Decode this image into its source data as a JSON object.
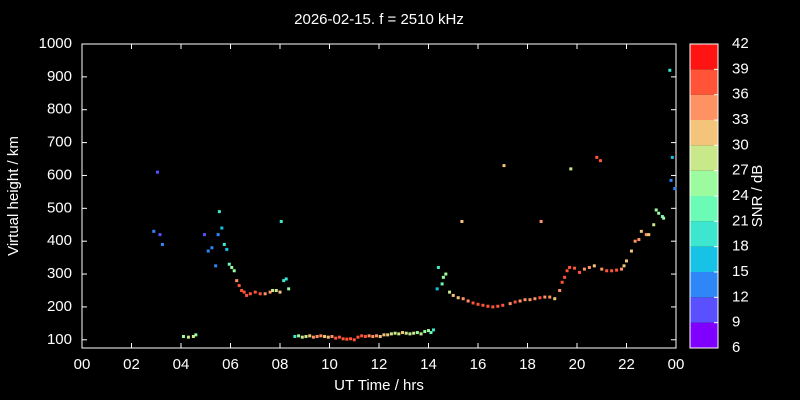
{
  "chart_data": {
    "type": "scatter",
    "title": "2026-02-15. f = 2510 kHz",
    "xlabel": "UT Time / hrs",
    "ylabel": "Virtual height / km",
    "colorbar_label": "SNR / dB",
    "xlim": [
      0,
      24
    ],
    "ylim": [
      75,
      1000
    ],
    "xticks": [
      {
        "value": 0,
        "label": "00"
      },
      {
        "value": 2,
        "label": "02"
      },
      {
        "value": 4,
        "label": "04"
      },
      {
        "value": 6,
        "label": "06"
      },
      {
        "value": 8,
        "label": "08"
      },
      10,
      12,
      14,
      16,
      18,
      20,
      22,
      {
        "value": 24,
        "label": "00"
      }
    ],
    "yticks": [
      100,
      200,
      300,
      400,
      500,
      600,
      700,
      800,
      900,
      1000
    ],
    "clim": [
      6,
      42
    ],
    "cticks": [
      6,
      9,
      12,
      15,
      18,
      21,
      24,
      27,
      30,
      33,
      36,
      39,
      42
    ],
    "colormap": [
      "#8000ff",
      "#5a50ff",
      "#2e86f7",
      "#18c2e6",
      "#3de6cf",
      "#6bfbb6",
      "#9cfb9e",
      "#c9e88a",
      "#f4c47a",
      "#ff9262",
      "#ff5437",
      "#ff1414"
    ],
    "x": [
      2.9,
      3.05,
      3.15,
      3.25,
      4.95,
      5.1,
      5.25,
      5.4,
      5.5,
      5.55,
      5.65,
      5.75,
      5.85,
      5.95,
      6.05,
      6.15,
      6.25,
      6.35,
      6.45,
      6.55,
      6.65,
      6.8,
      7.0,
      7.2,
      7.4,
      7.6,
      7.7,
      7.85,
      8.0,
      8.05,
      8.15,
      8.25,
      8.35,
      4.1,
      4.3,
      4.5,
      4.6,
      8.6,
      8.75,
      8.9,
      9.05,
      9.2,
      9.35,
      9.5,
      9.65,
      9.8,
      9.95,
      10.1,
      10.25,
      10.4,
      10.55,
      10.7,
      10.85,
      11.0,
      11.15,
      11.3,
      11.45,
      11.6,
      11.75,
      11.9,
      12.05,
      12.2,
      12.35,
      12.5,
      12.65,
      12.8,
      12.95,
      13.1,
      13.25,
      13.4,
      13.55,
      13.7,
      13.85,
      14.0,
      14.1,
      14.2,
      14.35,
      14.4,
      14.55,
      14.6,
      14.7,
      14.85,
      15.0,
      15.2,
      15.35,
      15.4,
      15.6,
      15.8,
      16.0,
      16.2,
      16.4,
      16.6,
      16.8,
      17.0,
      17.05,
      17.3,
      17.5,
      17.7,
      17.9,
      18.1,
      18.3,
      18.5,
      18.55,
      18.7,
      18.9,
      19.1,
      19.3,
      19.4,
      19.5,
      19.6,
      19.7,
      19.75,
      19.9,
      20.1,
      20.3,
      20.5,
      20.7,
      20.8,
      20.95,
      21.0,
      21.2,
      21.4,
      21.6,
      21.8,
      21.9,
      22.0,
      22.2,
      22.35,
      22.5,
      22.6,
      22.8,
      22.9,
      23.1,
      23.2,
      23.3,
      23.45,
      23.5,
      23.75,
      23.8,
      23.85,
      23.95
    ],
    "y": [
      430,
      610,
      420,
      390,
      420,
      370,
      380,
      325,
      420,
      490,
      440,
      390,
      375,
      330,
      320,
      310,
      280,
      265,
      250,
      245,
      235,
      240,
      245,
      240,
      240,
      245,
      250,
      250,
      245,
      460,
      280,
      285,
      255,
      110,
      108,
      110,
      115,
      110,
      112,
      108,
      110,
      112,
      108,
      110,
      112,
      110,
      108,
      110,
      105,
      108,
      103,
      102,
      103,
      100,
      108,
      112,
      110,
      112,
      110,
      112,
      110,
      115,
      115,
      118,
      120,
      118,
      122,
      120,
      118,
      120,
      122,
      118,
      125,
      128,
      122,
      130,
      255,
      320,
      270,
      290,
      300,
      245,
      235,
      228,
      460,
      225,
      218,
      212,
      208,
      205,
      202,
      200,
      202,
      205,
      630,
      210,
      215,
      218,
      222,
      222,
      225,
      228,
      460,
      230,
      230,
      225,
      250,
      275,
      290,
      310,
      320,
      620,
      318,
      305,
      315,
      320,
      325,
      655,
      645,
      315,
      310,
      310,
      312,
      315,
      325,
      340,
      370,
      400,
      405,
      430,
      420,
      420,
      450,
      495,
      485,
      475,
      470,
      920,
      585,
      655,
      560
    ],
    "snr": [
      12,
      10,
      11,
      13,
      11,
      14,
      12,
      13,
      13,
      19,
      17,
      19,
      17,
      22,
      24,
      26,
      35,
      36,
      37,
      37,
      36,
      36,
      37,
      36,
      35,
      34,
      28,
      27,
      30,
      19,
      20,
      18,
      26,
      26,
      27,
      28,
      25,
      20,
      24,
      27,
      29,
      31,
      33,
      35,
      34,
      32,
      30,
      33,
      36,
      37,
      38,
      38,
      37,
      36,
      36,
      37,
      36,
      35,
      34,
      33,
      32,
      31,
      30,
      29,
      28,
      27,
      30,
      29,
      27,
      28,
      26,
      27,
      25,
      24,
      22,
      18,
      15,
      20,
      23,
      25,
      24,
      28,
      30,
      31,
      32,
      33,
      35,
      36,
      36,
      37,
      37,
      38,
      37,
      36,
      31,
      35,
      36,
      35,
      34,
      34,
      35,
      36,
      33,
      35,
      33,
      32,
      35,
      37,
      37,
      37,
      38,
      29,
      37,
      36,
      35,
      33,
      31,
      37,
      38,
      34,
      37,
      38,
      37,
      33,
      31,
      30,
      31,
      34,
      33,
      31,
      33,
      32,
      28,
      25,
      24,
      23,
      24,
      18,
      12,
      16,
      13
    ]
  }
}
